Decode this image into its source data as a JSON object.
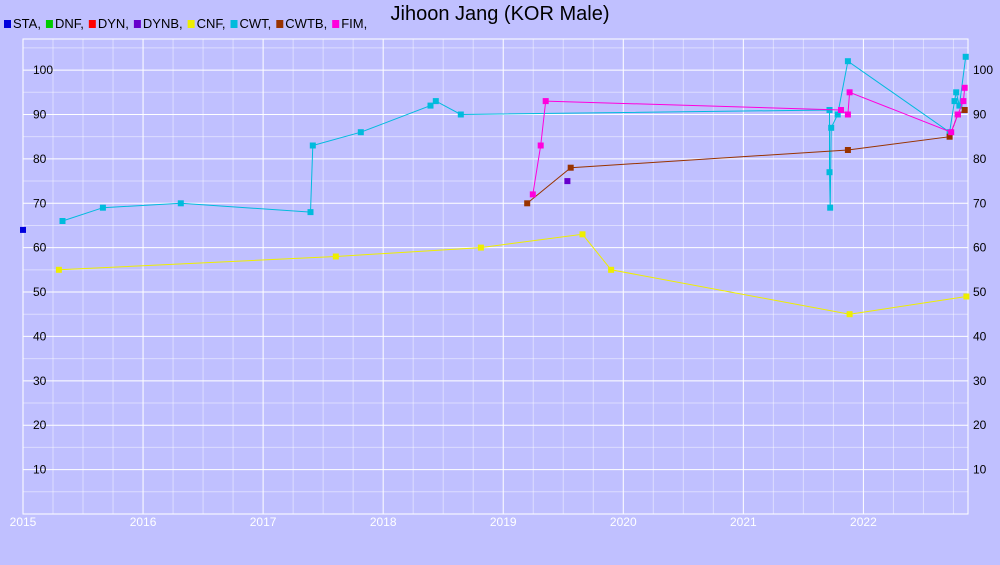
{
  "colors": {
    "background": "#c0c0ff",
    "grid": "#ffffff",
    "axis": "#000000"
  },
  "chart_data": {
    "type": "line",
    "title": "Jihoon Jang (KOR Male)",
    "xlabel": "",
    "ylabel": "",
    "x_type": "date",
    "xlim": [
      "2015-01-01",
      "2022-11-15"
    ],
    "ylim": [
      0,
      107
    ],
    "grid": true,
    "legend_position": "top-left",
    "x_ticks": [
      "2015",
      "2016",
      "2017",
      "2018",
      "2019",
      "2020",
      "2021",
      "2022"
    ],
    "y_ticks_left": [
      "10",
      "20",
      "30",
      "40",
      "50",
      "60",
      "70",
      "80",
      "90",
      "100"
    ],
    "y_ticks_right": [
      "10",
      "20",
      "30",
      "40",
      "50",
      "60",
      "70",
      "80",
      "90",
      "100"
    ],
    "series": [
      {
        "name": "STA",
        "legend_label": "STA,",
        "color": "#0000dd",
        "points": [
          [
            "2015-01-01",
            64
          ]
        ]
      },
      {
        "name": "DNF",
        "legend_label": "DNF,",
        "color": "#00cc00",
        "points": []
      },
      {
        "name": "DYN",
        "legend_label": "DYN,",
        "color": "#ff0000",
        "points": []
      },
      {
        "name": "DYNB",
        "legend_label": "DYNB,",
        "color": "#6600cc",
        "points": [
          [
            "2019-07-15",
            75
          ]
        ]
      },
      {
        "name": "CNF",
        "legend_label": "CNF,",
        "color": "#eeee00",
        "points": [
          [
            "2015-04-20",
            55
          ],
          [
            "2017-08-10",
            58
          ],
          [
            "2018-10-25",
            60
          ],
          [
            "2019-08-30",
            63
          ],
          [
            "2019-11-25",
            55
          ],
          [
            "2021-11-20",
            45
          ],
          [
            "2022-11-10",
            49
          ]
        ]
      },
      {
        "name": "CWT",
        "legend_label": "CWT,",
        "color": "#00bbdd",
        "points": [
          [
            "2015-05-01",
            66
          ],
          [
            "2015-09-01",
            69
          ],
          [
            "2016-04-25",
            70
          ],
          [
            "2017-05-25",
            68
          ],
          [
            "2017-06-01",
            83
          ],
          [
            "2017-10-25",
            86
          ],
          [
            "2018-05-25",
            92
          ],
          [
            "2018-06-10",
            93
          ],
          [
            "2018-08-25",
            90
          ],
          [
            "2021-09-20",
            91
          ],
          [
            "2021-09-20",
            77
          ],
          [
            "2021-09-22",
            69
          ],
          [
            "2021-09-25",
            87
          ],
          [
            "2021-10-15",
            90
          ],
          [
            "2021-11-15",
            102
          ],
          [
            "2022-09-20",
            86
          ],
          [
            "2022-10-05",
            93
          ],
          [
            "2022-10-10",
            95
          ],
          [
            "2022-10-20",
            92
          ],
          [
            "2022-11-08",
            103
          ]
        ]
      },
      {
        "name": "CWTB",
        "legend_label": "CWTB,",
        "color": "#993300",
        "points": [
          [
            "2019-03-15",
            70
          ],
          [
            "2019-07-25",
            78
          ],
          [
            "2021-11-15",
            82
          ],
          [
            "2022-09-20",
            85
          ],
          [
            "2022-10-15",
            90
          ],
          [
            "2022-11-05",
            91
          ]
        ]
      },
      {
        "name": "FIM",
        "legend_label": "FIM,",
        "color": "#ff00dd",
        "points": [
          [
            "2019-04-01",
            72
          ],
          [
            "2019-04-25",
            83
          ],
          [
            "2019-05-10",
            93
          ],
          [
            "2021-10-25",
            91
          ],
          [
            "2021-11-15",
            90
          ],
          [
            "2021-11-20",
            95
          ],
          [
            "2022-09-25",
            86
          ],
          [
            "2022-10-15",
            90
          ],
          [
            "2022-11-01",
            93
          ],
          [
            "2022-11-05",
            96
          ]
        ]
      }
    ]
  }
}
